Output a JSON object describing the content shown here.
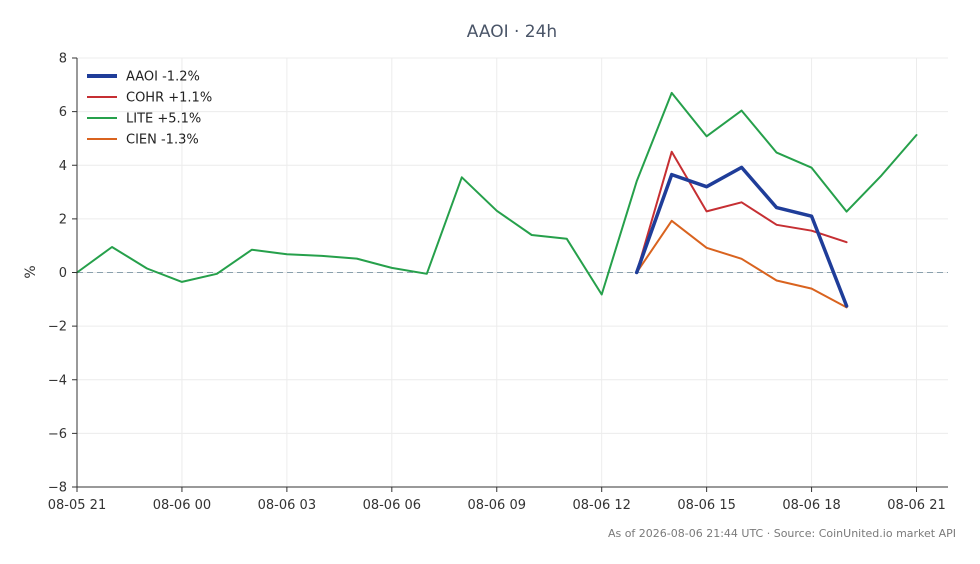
{
  "chart_data": {
    "type": "line",
    "title": "AAOI · 24h",
    "xlabel": "",
    "ylabel": "%",
    "ylim": [
      -8,
      8
    ],
    "yticks": [
      -8,
      -6,
      -4,
      -2,
      0,
      2,
      4,
      6,
      8
    ],
    "yticklabels": [
      "−8",
      "−6",
      "−4",
      "−2",
      "0",
      "2",
      "4",
      "6",
      "8"
    ],
    "xlim": [
      0,
      24.9
    ],
    "xticks": [
      0,
      3,
      6,
      9,
      12,
      15,
      18,
      21,
      24
    ],
    "xticklabels": [
      "08-05 21",
      "08-06 00",
      "08-06 03",
      "08-06 06",
      "08-06 09",
      "08-06 12",
      "08-06 15",
      "08-06 18",
      "08-06 21"
    ],
    "grid": true,
    "zero_line": true,
    "legend_position": "top-left",
    "series": [
      {
        "name": "AAOI -1.2%",
        "color": "#1f3d99",
        "emphasis": true,
        "x": [
          16,
          17,
          18,
          19,
          20,
          21,
          22
        ],
        "y": [
          0.0,
          3.65,
          3.2,
          3.92,
          2.42,
          2.1,
          -1.25
        ]
      },
      {
        "name": "COHR +1.1%",
        "color": "#c62f33",
        "emphasis": false,
        "x": [
          16,
          17,
          18,
          19,
          20,
          21,
          22
        ],
        "y": [
          0.0,
          4.5,
          2.28,
          2.62,
          1.78,
          1.56,
          1.13
        ]
      },
      {
        "name": "LITE +5.1%",
        "color": "#26a04b",
        "emphasis": false,
        "x": [
          0,
          1,
          2,
          3,
          4,
          5,
          6,
          7,
          8,
          9,
          10,
          11,
          12,
          13,
          14,
          15,
          16,
          17,
          18,
          19,
          20,
          21,
          22,
          23,
          24
        ],
        "y": [
          0.0,
          0.95,
          0.15,
          -0.35,
          -0.05,
          0.85,
          0.68,
          0.62,
          0.52,
          0.17,
          -0.05,
          3.55,
          2.3,
          1.4,
          1.26,
          -0.82,
          3.4,
          6.7,
          5.08,
          6.04,
          4.47,
          3.91,
          2.27,
          3.62,
          5.13
        ]
      },
      {
        "name": "CIEN -1.3%",
        "color": "#d9631f",
        "emphasis": false,
        "x": [
          16,
          17,
          18,
          19,
          20,
          21,
          22
        ],
        "y": [
          0.0,
          1.93,
          0.92,
          0.51,
          -0.3,
          -0.6,
          -1.3
        ]
      }
    ],
    "footer": "As of 2026-08-06 21:44 UTC · Source: CoinUnited.io market API"
  }
}
